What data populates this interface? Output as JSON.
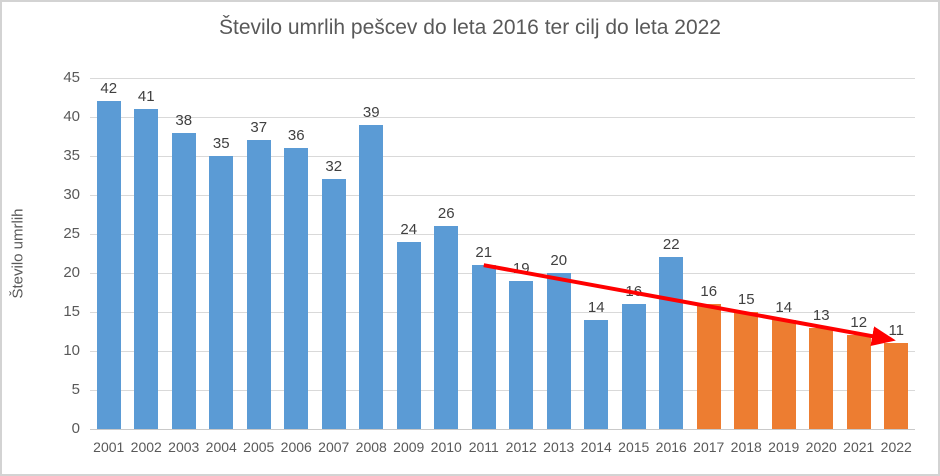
{
  "chart_data": {
    "type": "bar",
    "title": "Število umrlih pešcev do leta 2016 ter cilj do leta 2022",
    "xlabel": "",
    "ylabel": "Število umrlih",
    "ylim": [
      0,
      45
    ],
    "yticks": [
      0,
      5,
      10,
      15,
      20,
      25,
      30,
      35,
      40,
      45
    ],
    "grid": "horizontal",
    "legend_visible": false,
    "categories": [
      "2001",
      "2002",
      "2003",
      "2004",
      "2005",
      "2006",
      "2007",
      "2008",
      "2009",
      "2010",
      "2011",
      "2012",
      "2013",
      "2014",
      "2015",
      "2016",
      "2017",
      "2018",
      "2019",
      "2020",
      "2021",
      "2022"
    ],
    "values": [
      42,
      41,
      38,
      35,
      37,
      36,
      32,
      39,
      24,
      26,
      21,
      19,
      20,
      14,
      16,
      22,
      16,
      15,
      14,
      13,
      12,
      11
    ],
    "data_labels_visible": true,
    "series_split": {
      "blue_bars_categories": "2001–2016",
      "orange_bars_categories": "2017–2022",
      "orange_start_index": 16
    },
    "colors": {
      "blue_bar": "#5B9BD5",
      "orange_bar": "#ED7D31",
      "trend_arrow": "#FF0000",
      "title_text": "#595959",
      "axis_text": "#595959",
      "data_label_text": "#404040",
      "gridline": "#D9D9D9"
    },
    "trend_arrow": {
      "from_category": "2011",
      "from_value": 21,
      "to_category": "2022",
      "to_value": 11
    }
  }
}
